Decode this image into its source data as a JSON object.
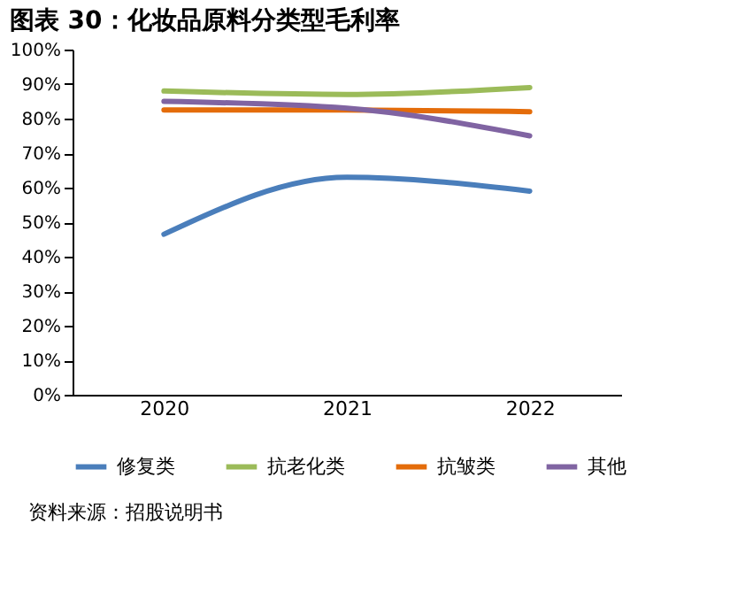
{
  "chart_data": {
    "type": "line",
    "title": "图表 30：化妆品原料分类型毛利率",
    "categories": [
      "2020",
      "2021",
      "2022"
    ],
    "series": [
      {
        "name": "修复类",
        "color": "#4a7ebb",
        "values": [
          46.5,
          63,
          59
        ]
      },
      {
        "name": "抗老化类",
        "color": "#9bbb59",
        "values": [
          88,
          87,
          89
        ]
      },
      {
        "name": "抗皱类",
        "color": "#e46c0a",
        "values": [
          82.5,
          82.5,
          82
        ]
      },
      {
        "name": "其他",
        "color": "#8064a2",
        "values": [
          85,
          83,
          75
        ]
      }
    ],
    "ylim": [
      0,
      100
    ],
    "yticks": [
      {
        "value": 0,
        "label": "0%"
      },
      {
        "value": 10,
        "label": "10%"
      },
      {
        "value": 20,
        "label": "20%"
      },
      {
        "value": 30,
        "label": "30%"
      },
      {
        "value": 40,
        "label": "40%"
      },
      {
        "value": 50,
        "label": "50%"
      },
      {
        "value": 60,
        "label": "60%"
      },
      {
        "value": 70,
        "label": "70%"
      },
      {
        "value": 80,
        "label": "80%"
      },
      {
        "value": 90,
        "label": "90%"
      },
      {
        "value": 100,
        "label": "100%"
      }
    ],
    "grid": false,
    "legend": "bottom",
    "marker": "none",
    "line_style": "solid",
    "annotations": [
      "资料来源：招股说明书"
    ]
  }
}
